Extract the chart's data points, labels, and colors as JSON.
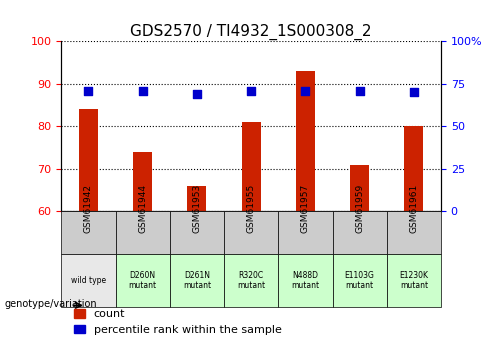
{
  "title": "GDS2570 / TI4932_1S000308_2",
  "samples": [
    "GSM61942",
    "GSM61944",
    "GSM61953",
    "GSM61955",
    "GSM61957",
    "GSM61959",
    "GSM61961"
  ],
  "genotypes": [
    "wild type",
    "D260N\nmutant",
    "D261N\nmutant",
    "R320C\nmutant",
    "N488D\nmutant",
    "E1103G\nmutant",
    "E1230K\nmutant"
  ],
  "genotype_bg": [
    "#e8e8e8",
    "#ccffcc",
    "#ccffcc",
    "#ccffcc",
    "#ccffcc",
    "#ccffcc",
    "#ccffcc"
  ],
  "count_values": [
    84,
    74,
    66,
    81,
    93,
    71,
    80
  ],
  "percentile_values": [
    71,
    71,
    69,
    71,
    71,
    71,
    70
  ],
  "ylim_left": [
    60,
    100
  ],
  "ylim_right": [
    0,
    100
  ],
  "yticks_left": [
    60,
    70,
    80,
    90,
    100
  ],
  "yticks_right": [
    0,
    25,
    50,
    75,
    100
  ],
  "ytick_labels_right": [
    "0",
    "25",
    "50",
    "75",
    "100%"
  ],
  "bar_color": "#cc2200",
  "dot_color": "#0000cc",
  "grid_color": "#000000",
  "bar_width": 0.35,
  "dot_size": 40,
  "title_fontsize": 11,
  "tick_fontsize": 8,
  "label_fontsize": 8,
  "legend_fontsize": 8
}
